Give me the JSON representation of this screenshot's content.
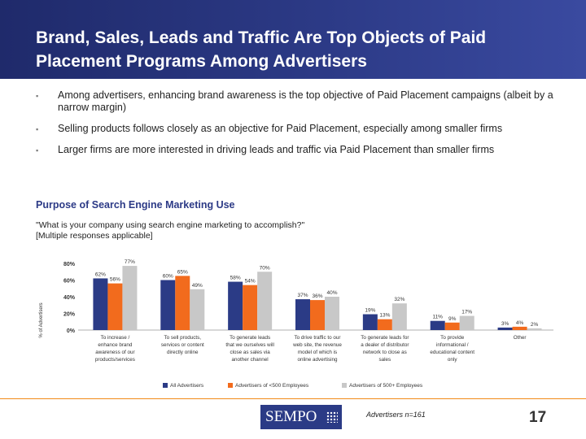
{
  "slide": {
    "title": "Brand, Sales, Leads and Traffic Are Top Objects of Paid Placement Programs Among Advertisers",
    "bullets": [
      "Among advertisers, enhancing brand awareness is the top objective of Paid Placement campaigns (albeit by a narrow margin)",
      "Selling products follows closely as an objective for Paid Placement, especially among smaller firms",
      "Larger firms are more interested in driving leads and traffic via Paid Placement than smaller firms"
    ],
    "bullet_symbol": "▪",
    "section_title": "Purpose of Search Engine Marketing Use",
    "question_line1": "\"What is your company using search engine marketing to accomplish?\"",
    "question_line2": "[Multiple responses applicable]",
    "footnote": "Advertisers n=161",
    "page_number": "17",
    "logo_text": "SEMPO"
  },
  "colors": {
    "header": "#2c3a86",
    "all": "#2b3b86",
    "small": "#f26b1d",
    "large": "#c8c8c8",
    "accent": "#f28a18"
  },
  "chart_data": {
    "type": "bar",
    "ylabel": "% of Advertisers",
    "ylim": [
      0,
      80
    ],
    "yticks": [
      "0%",
      "20%",
      "40%",
      "60%",
      "80%"
    ],
    "categories": [
      [
        "To increase /",
        "enhance brand",
        "awareness of our",
        "products/services"
      ],
      [
        "To sell products,",
        "services or content",
        "directly online"
      ],
      [
        "To generate leads",
        "that we ourselves will",
        "close as sales via",
        "another channel"
      ],
      [
        "To drive traffic to our",
        "web site, the revenue",
        "model of which is",
        "online advertising"
      ],
      [
        "To generate leads for",
        "a dealer of distributor",
        "network to close as",
        "sales"
      ],
      [
        "To provide",
        "informational /",
        "educational content",
        "only"
      ],
      [
        "Other"
      ]
    ],
    "series": [
      {
        "name": "All Advertisers",
        "values": [
          62,
          60,
          58,
          37,
          19,
          11,
          3
        ],
        "labels": [
          "62%",
          "60%",
          "58%",
          "37%",
          "19%",
          "11%",
          "3%"
        ]
      },
      {
        "name": "Advertisers of <500 Employees",
        "values": [
          56,
          65,
          54,
          36,
          13,
          9,
          4
        ],
        "labels": [
          "56%",
          "65%",
          "54%",
          "36%",
          "13%",
          "9%",
          "4%"
        ]
      },
      {
        "name": "Advertisers of 500+ Employees",
        "values": [
          77,
          49,
          70,
          40,
          32,
          17,
          2
        ],
        "labels": [
          "77%",
          "49%",
          "70%",
          "40%",
          "32%",
          "17%",
          "2%"
        ]
      }
    ],
    "legend_position": "bottom",
    "grid": false
  }
}
